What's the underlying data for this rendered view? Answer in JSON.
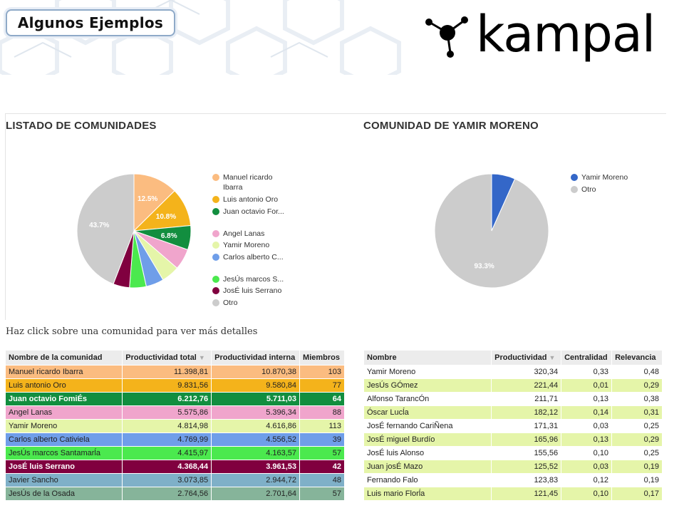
{
  "header": {
    "badge_label": "Algunos Ejemplos",
    "logo_text": "kampal",
    "logo_icon": "molecule-icon"
  },
  "left_panel": {
    "title": "LISTADO DE COMUNIDADES"
  },
  "right_panel": {
    "title": "COMUNIDAD DE YAMIR MORENO"
  },
  "hint_text": "Haz click sobre una comunidad para ver más detalles",
  "chart_data": [
    {
      "type": "pie",
      "title": "LISTADO DE COMUNIDADES",
      "legend_position": "right",
      "slices": [
        {
          "label": "Manuel ricardo Ibarra",
          "value": 12.5,
          "color": "#fbbc80",
          "data_label": "12.5%"
        },
        {
          "label": "Luis antonio Oro",
          "value": 10.8,
          "color": "#f4b31b",
          "data_label": "10.8%"
        },
        {
          "label": "Juan octavio For...",
          "value": 6.8,
          "color": "#128e3f",
          "data_label": "6.8%"
        },
        {
          "label": "Angel Lanas",
          "value": 5.9,
          "color": "#f0a5cc",
          "data_label": ""
        },
        {
          "label": "Yamir Moreno",
          "value": 5.1,
          "color": "#e5f5a9",
          "data_label": ""
        },
        {
          "label": "Carlos alberto C...",
          "value": 5.0,
          "color": "#6f9ee9",
          "data_label": ""
        },
        {
          "label": "JesÚs marcos S...",
          "value": 4.7,
          "color": "#4be94e",
          "data_label": ""
        },
        {
          "label": "JosÉ luis Serrano",
          "value": 4.6,
          "color": "#80003f",
          "data_label": ""
        },
        {
          "label": "Otro",
          "value": 43.7,
          "color": "#cccccc",
          "data_label": "43.7%"
        }
      ],
      "legend": [
        "Manuel ricardo Ibarra",
        "Luis antonio Oro",
        "Juan octavio For...",
        "Angel Lanas",
        "Yamir Moreno",
        "Carlos alberto C...",
        "JesÚs marcos S...",
        "JosÉ luis Serrano",
        "Otro"
      ]
    },
    {
      "type": "pie",
      "title": "COMUNIDAD DE YAMIR MORENO",
      "legend_position": "right",
      "slices": [
        {
          "label": "Yamir Moreno",
          "value": 6.7,
          "color": "#3467c8",
          "data_label": ""
        },
        {
          "label": "Otro",
          "value": 93.3,
          "color": "#cccccc",
          "data_label": "93.3%"
        }
      ],
      "legend": [
        "Yamir Moreno",
        "Otro"
      ]
    }
  ],
  "communities_table": {
    "headers": [
      "Nombre de la comunidad",
      "Productividad total",
      "Productividad interna",
      "Miembros"
    ],
    "sorted_column": 1,
    "rows": [
      {
        "cells": [
          "Manuel ricardo Ibarra",
          "11.398,81",
          "10.870,38",
          "103"
        ],
        "bg": "#fbbc80",
        "fg": "#222222",
        "bold": false
      },
      {
        "cells": [
          "Luis antonio Oro",
          "9.831,56",
          "9.580,84",
          "77"
        ],
        "bg": "#f4b31b",
        "fg": "#222222",
        "bold": false
      },
      {
        "cells": [
          "Juan octavio FomiÉs",
          "6.212,76",
          "5.711,03",
          "64"
        ],
        "bg": "#128e3f",
        "fg": "#ffffff",
        "bold": true
      },
      {
        "cells": [
          "Angel Lanas",
          "5.575,86",
          "5.396,34",
          "88"
        ],
        "bg": "#f0a5cc",
        "fg": "#222222",
        "bold": false
      },
      {
        "cells": [
          "Yamir Moreno",
          "4.814,98",
          "4.616,86",
          "113"
        ],
        "bg": "#e5f5a9",
        "fg": "#222222",
        "bold": false
      },
      {
        "cells": [
          "Carlos alberto Cativiela",
          "4.769,99",
          "4.556,52",
          "39"
        ],
        "bg": "#6f9ee9",
        "fg": "#222222",
        "bold": false
      },
      {
        "cells": [
          "JesÚs marcos Santamarĺa",
          "4.415,97",
          "4.163,57",
          "57"
        ],
        "bg": "#4be94e",
        "fg": "#222222",
        "bold": false
      },
      {
        "cells": [
          "JosÉ luis Serrano",
          "4.368,44",
          "3.961,53",
          "42"
        ],
        "bg": "#80003f",
        "fg": "#ffffff",
        "bold": true
      },
      {
        "cells": [
          "Javier Sancho",
          "3.073,85",
          "2.944,72",
          "48"
        ],
        "bg": "#7fb0c8",
        "fg": "#222222",
        "bold": false
      },
      {
        "cells": [
          "JesÚs de la Osada",
          "2.764,56",
          "2.701,64",
          "57"
        ],
        "bg": "#86b49a",
        "fg": "#222222",
        "bold": false
      }
    ]
  },
  "members_table": {
    "headers": [
      "Nombre",
      "Productividad",
      "Centralidad",
      "Relevancia"
    ],
    "sorted_column": 1,
    "rows": [
      {
        "cells": [
          "Yamir Moreno",
          "320,34",
          "0,33",
          "0,48"
        ],
        "bg": "#ffffff"
      },
      {
        "cells": [
          "JesÚs GÓmez",
          "221,44",
          "0,01",
          "0,29"
        ],
        "bg": "#e5f5a9"
      },
      {
        "cells": [
          "Alfonso TarancÓn",
          "211,71",
          "0,13",
          "0,38"
        ],
        "bg": "#ffffff"
      },
      {
        "cells": [
          "Óscar Lucĺa",
          "182,12",
          "0,14",
          "0,31"
        ],
        "bg": "#e5f5a9"
      },
      {
        "cells": [
          "JosÉ fernando CariÑena",
          "171,31",
          "0,03",
          "0,25"
        ],
        "bg": "#ffffff"
      },
      {
        "cells": [
          "JosÉ miguel Burdío",
          "165,96",
          "0,13",
          "0,29"
        ],
        "bg": "#e5f5a9"
      },
      {
        "cells": [
          "JosÉ luis Alonso",
          "155,56",
          "0,10",
          "0,25"
        ],
        "bg": "#ffffff"
      },
      {
        "cells": [
          "Juan josÉ Mazo",
          "125,52",
          "0,03",
          "0,19"
        ],
        "bg": "#e5f5a9"
      },
      {
        "cells": [
          "Fernando Falo",
          "123,83",
          "0,12",
          "0,19"
        ],
        "bg": "#ffffff"
      },
      {
        "cells": [
          "Luis mario Florĺa",
          "121,45",
          "0,10",
          "0,17"
        ],
        "bg": "#e5f5a9"
      }
    ]
  }
}
